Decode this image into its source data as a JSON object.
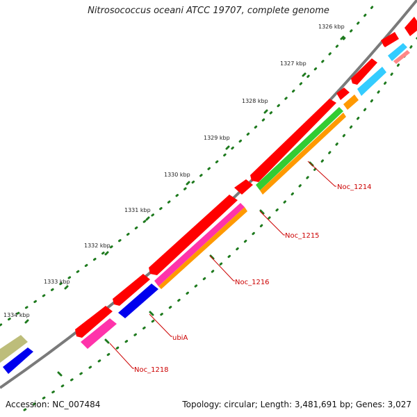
{
  "title": "Nitrosococcus oceani ATCC 19707, complete genome",
  "accession": "Accession: NC_007484",
  "summary": "Topology: circular; Length: 3,481,691 bp; Genes: 3,027",
  "colors": {
    "backbone": "#7a7a7a",
    "cds": "#ff0000",
    "cog_green": "#33cc33",
    "cog_orange": "#ff9900",
    "cog_magenta": "#ff33aa",
    "cog_blue": "#0000ee",
    "cog_cyan": "#33ccff",
    "cog_olive": "#bdbd7a",
    "cog_pink": "#ff8888",
    "tick": "#1e7a1e",
    "label": "#cc0000"
  },
  "ticks": [
    "1326 kbp",
    "1327 kbp",
    "1328 kbp",
    "1329 kbp",
    "1330 kbp",
    "1331 kbp",
    "1332 kbp",
    "1333 kbp",
    "1334 kbp"
  ],
  "gene_labels": [
    "Noc_1214",
    "Noc_1215",
    "Noc_1216",
    "ubiA",
    "Noc_1218"
  ]
}
